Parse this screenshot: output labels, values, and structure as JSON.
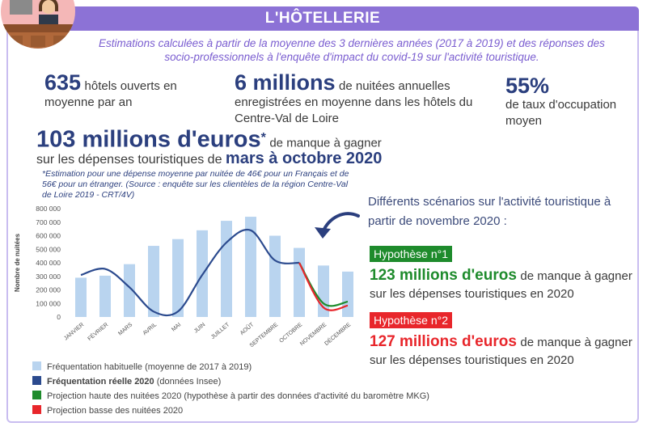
{
  "header": {
    "title": "L'HÔTELLERIE",
    "subtitle": "Estimations calculées à partir de la moyenne des 3 dernières années (2017 à 2019) et des réponses des socio-professionnels à l'enquête d'impact du covid-19 sur l'activité touristique."
  },
  "stats": [
    {
      "value": "635",
      "text": "hôtels ouverts en moyenne par an"
    },
    {
      "value": "6 millions",
      "text": "de nuitées annuelles enregistrées en moyenne dans les hôtels du Centre-Val de Loire"
    },
    {
      "value": "55%",
      "text": "de taux d'occupation moyen"
    }
  ],
  "loss": {
    "value": "103 millions d'euros",
    "mark": "*",
    "text1": "de manque à gagner",
    "text2": "sur les dépenses touristiques de",
    "period": "mars à octobre 2020",
    "note": "*Estimation pour une dépense moyenne par nuitée de 46€ pour un Français et de 56€ pour un étranger. (Source : enquête sur les clientèles de la région Centre-Val de Loire 2019 - CRT/4V)"
  },
  "scenarios": {
    "intro": "Différents scénarios sur l'activité touristique à partir de novembre 2020 :",
    "items": [
      {
        "label": "Hypothèse n°1",
        "value": "123 millions d'euros",
        "text": "de manque à gagner sur les dépenses touristiques en 2020",
        "color": "#1e8b2c"
      },
      {
        "label": "Hypothèse n°2",
        "value": "127 millions d'euros",
        "text": "de manque à gagner sur les dépenses touristiques en 2020",
        "color": "#e8262b"
      }
    ]
  },
  "chart_data": {
    "type": "bar",
    "ylabel": "Nombre de nuitées",
    "categories": [
      "JANVIER",
      "FÉVRIER",
      "MARS",
      "AVRIL",
      "MAI",
      "JUIN",
      "JUILLET",
      "AOÛT",
      "SEPTEMBRE",
      "OCTOBRE",
      "NOVEMBRE",
      "DÉCEMBRE"
    ],
    "ylim": [
      0,
      800000
    ],
    "yticks": [
      0,
      {
        "value": 100000,
        "label": "100 000"
      },
      {
        "value": 200000,
        "label": "200 000"
      },
      {
        "value": 300000,
        "label": "300 000"
      },
      {
        "value": 400000,
        "label": "400 000"
      },
      {
        "value": 500000,
        "label": "500 000"
      },
      {
        "value": 600000,
        "label": "600 000"
      },
      {
        "value": 700000,
        "label": "700 000"
      },
      {
        "value": 800000,
        "label": "800 000"
      }
    ],
    "series": [
      {
        "name": "Fréquentation habituelle",
        "note": "(moyenne de 2017 à 2019)",
        "type": "bar",
        "color": "#b9d4ef",
        "values": [
          290000,
          305000,
          390000,
          525000,
          575000,
          640000,
          710000,
          740000,
          600000,
          510000,
          380000,
          335000
        ]
      },
      {
        "name": "Fréquentation réelle 2020",
        "note": "(données Insee)",
        "type": "line",
        "color": "#2b4a8e",
        "values": [
          310000,
          355000,
          220000,
          40000,
          40000,
          310000,
          550000,
          640000,
          418000,
          400000,
          null,
          null
        ]
      },
      {
        "name": "Projection haute des nuitées 2020",
        "note": "(hypothèse à partir des données d'activité du baromètre MKG)",
        "type": "line",
        "color": "#1e8b2c",
        "values": [
          null,
          null,
          null,
          null,
          null,
          null,
          null,
          null,
          null,
          400000,
          100000,
          113000
        ]
      },
      {
        "name": "Projection basse des nuitées 2020",
        "type": "line",
        "color": "#e8262b",
        "values": [
          null,
          null,
          null,
          null,
          null,
          null,
          null,
          null,
          null,
          400000,
          70000,
          84000
        ]
      }
    ]
  }
}
